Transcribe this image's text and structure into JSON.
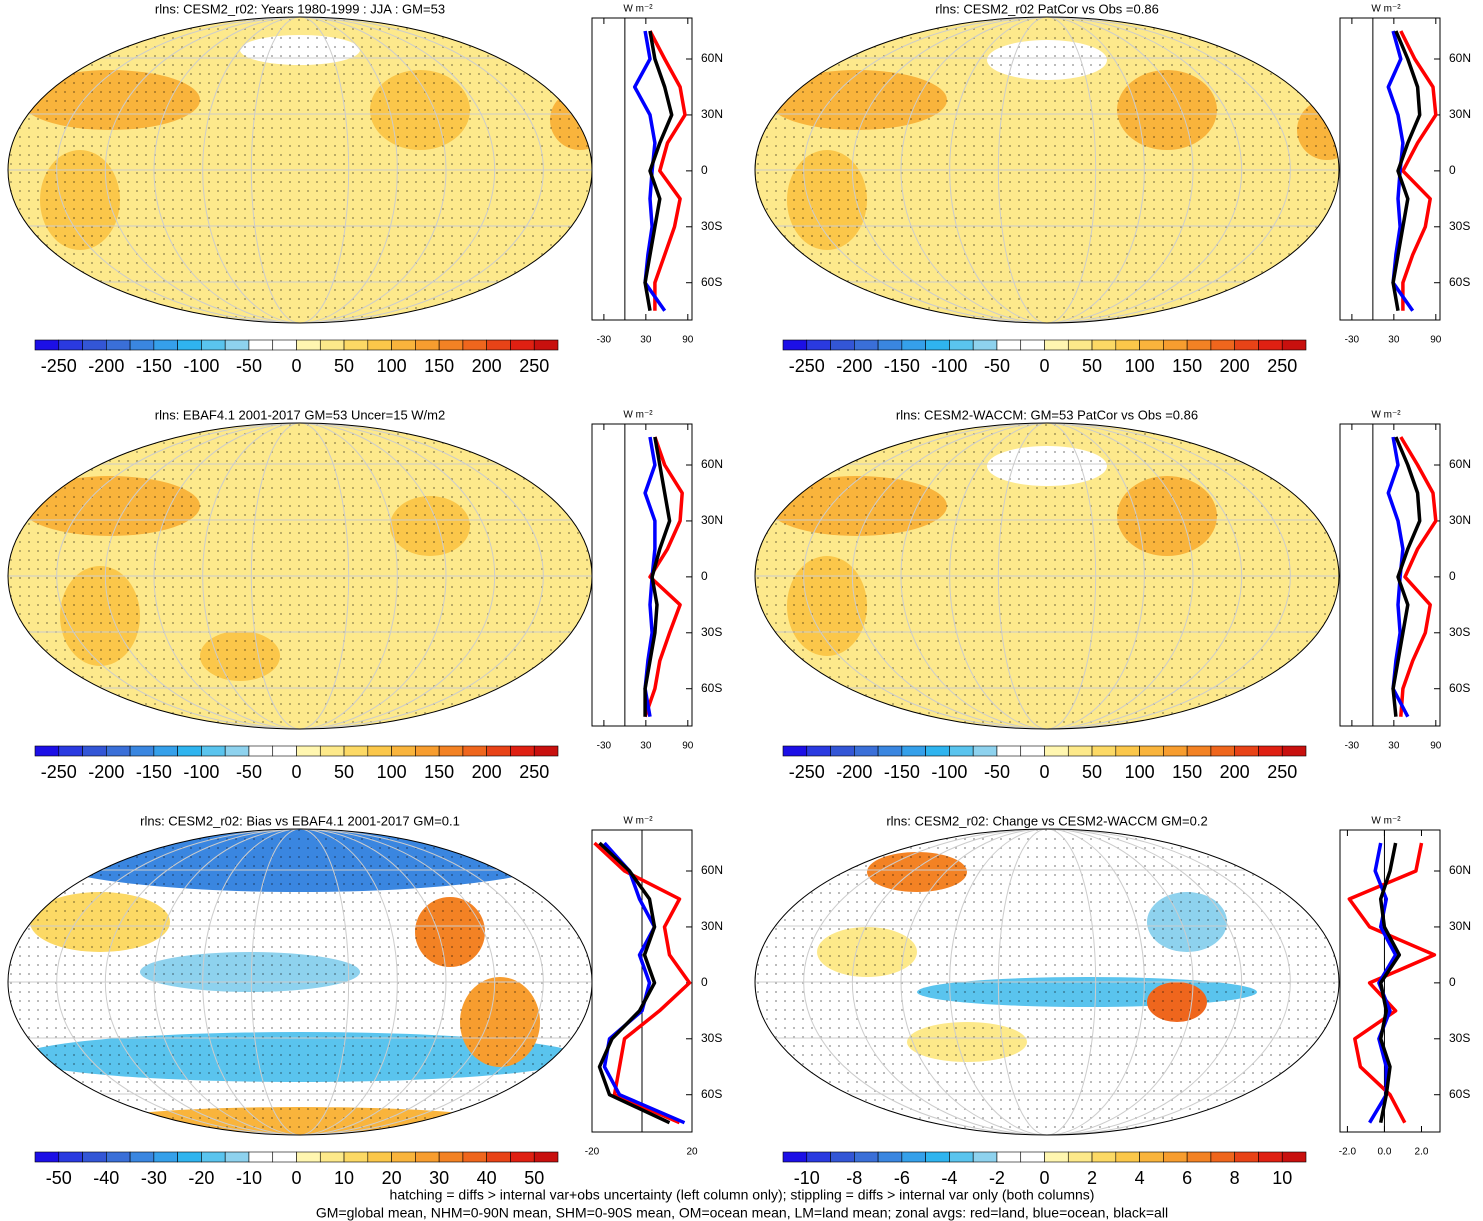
{
  "chart_data": [
    {
      "type": "map",
      "title": "rlns: CESM2_r02: Years 1980-1999 : JJA : GM=53",
      "fill": "#fde98c",
      "colorbar": {
        "lim": [
          -275,
          275
        ],
        "ticks": [
          -250,
          -200,
          -150,
          -100,
          -50,
          0,
          50,
          100,
          150,
          200,
          250
        ],
        "colors": [
          "#1c0fe6",
          "#2a3ae0",
          "#3356d6",
          "#3a6fd8",
          "#3a86e0",
          "#35a0ea",
          "#2fb4ef",
          "#5ac4ee",
          "#8ed2ee",
          "#ffffff",
          "#ffffff",
          "#fff6b0",
          "#fde98a",
          "#fcd965",
          "#fbc74a",
          "#f9b43c",
          "#f79d2f",
          "#f38224",
          "#ef661d",
          "#e84317",
          "#df2012",
          "#c8100e"
        ]
      }
    },
    {
      "type": "line",
      "unit": "W m⁻²",
      "x": [
        75,
        60,
        45,
        30,
        15,
        0,
        -15,
        -30,
        -45,
        -60,
        -75
      ],
      "xlim": [
        -80,
        82
      ],
      "xticks": [
        {
          "value": 60,
          "label": "60N"
        },
        {
          "value": 30,
          "label": "30N"
        },
        0,
        {
          "value": -30,
          "label": "30S"
        },
        {
          "value": -60,
          "label": "60S"
        }
      ],
      "ylim": [
        -47,
        96
      ],
      "yticks": [
        -30,
        30,
        90
      ],
      "series": [
        {
          "name": "land",
          "color": "#ff0000",
          "values": [
            36,
            57,
            79,
            86,
            61,
            50,
            79,
            71,
            57,
            43,
            43
          ]
        },
        {
          "name": "ocean",
          "color": "#0000ff",
          "values": [
            29,
            36,
            14,
            36,
            43,
            39,
            36,
            39,
            33,
            29,
            57
          ]
        },
        {
          "name": "all",
          "color": "#000000",
          "values": [
            36,
            43,
            57,
            67,
            50,
            36,
            50,
            43,
            36,
            29,
            36
          ]
        }
      ]
    },
    {
      "type": "map",
      "title": "rlns: CESM2_r02 PatCor vs Obs =0.86",
      "fill": "#fde98c",
      "colorbar": {
        "lim": [
          -275,
          275
        ],
        "ticks": [
          -250,
          -200,
          -150,
          -100,
          -50,
          0,
          50,
          100,
          150,
          200,
          250
        ],
        "colors": [
          "#1c0fe6",
          "#2a3ae0",
          "#3356d6",
          "#3a6fd8",
          "#3a86e0",
          "#35a0ea",
          "#2fb4ef",
          "#5ac4ee",
          "#8ed2ee",
          "#ffffff",
          "#ffffff",
          "#fff6b0",
          "#fde98a",
          "#fcd965",
          "#fbc74a",
          "#f9b43c",
          "#f79d2f",
          "#f38224",
          "#ef661d",
          "#e84317",
          "#df2012",
          "#c8100e"
        ]
      }
    },
    {
      "type": "line",
      "unit": "W m⁻²",
      "x": [
        75,
        60,
        45,
        30,
        15,
        0,
        -15,
        -30,
        -45,
        -60,
        -75
      ],
      "xlim": [
        -80,
        82
      ],
      "xticks": [
        {
          "value": 60,
          "label": "60N"
        },
        {
          "value": 30,
          "label": "30N"
        },
        0,
        {
          "value": -30,
          "label": "30S"
        },
        {
          "value": -60,
          "label": "60S"
        }
      ],
      "ylim": [
        -47,
        96
      ],
      "yticks": [
        -30,
        30,
        90
      ],
      "series": [
        {
          "name": "land",
          "color": "#ff0000",
          "values": [
            40,
            60,
            86,
            90,
            64,
            43,
            82,
            75,
            57,
            43,
            43
          ]
        },
        {
          "name": "ocean",
          "color": "#0000ff",
          "values": [
            29,
            40,
            22,
            36,
            43,
            39,
            36,
            39,
            33,
            29,
            57
          ]
        },
        {
          "name": "all",
          "color": "#000000",
          "values": [
            33,
            50,
            64,
            67,
            50,
            36,
            50,
            43,
            36,
            29,
            36
          ]
        }
      ]
    },
    {
      "type": "map",
      "title": "rlns: EBAF4.1 2001-2017 GM=53 Uncer=15 W/m2",
      "fill": "#fde98c",
      "colorbar": {
        "lim": [
          -275,
          275
        ],
        "ticks": [
          -250,
          -200,
          -150,
          -100,
          -50,
          0,
          50,
          100,
          150,
          200,
          250
        ],
        "colors": [
          "#1c0fe6",
          "#2a3ae0",
          "#3356d6",
          "#3a6fd8",
          "#3a86e0",
          "#35a0ea",
          "#2fb4ef",
          "#5ac4ee",
          "#8ed2ee",
          "#ffffff",
          "#ffffff",
          "#fff6b0",
          "#fde98a",
          "#fcd965",
          "#fbc74a",
          "#f9b43c",
          "#f79d2f",
          "#f38224",
          "#ef661d",
          "#e84317",
          "#df2012",
          "#c8100e"
        ]
      }
    },
    {
      "type": "line",
      "unit": "W m⁻²",
      "x": [
        75,
        60,
        45,
        30,
        15,
        0,
        -15,
        -30,
        -45,
        -60,
        -75
      ],
      "xlim": [
        -80,
        82
      ],
      "xticks": [
        {
          "value": 60,
          "label": "60N"
        },
        {
          "value": 30,
          "label": "30N"
        },
        0,
        {
          "value": -30,
          "label": "30S"
        },
        {
          "value": -60,
          "label": "60S"
        }
      ],
      "ylim": [
        -47,
        96
      ],
      "yticks": [
        -30,
        30,
        90
      ],
      "series": [
        {
          "name": "land",
          "color": "#ff0000",
          "values": [
            43,
            57,
            82,
            79,
            61,
            36,
            79,
            64,
            50,
            43,
            29
          ]
        },
        {
          "name": "ocean",
          "color": "#0000ff",
          "values": [
            36,
            43,
            29,
            43,
            43,
            39,
            36,
            39,
            33,
            29,
            36
          ]
        },
        {
          "name": "all",
          "color": "#000000",
          "values": [
            43,
            50,
            57,
            64,
            50,
            39,
            46,
            43,
            36,
            29,
            29
          ]
        }
      ]
    },
    {
      "type": "map",
      "title": "rlns: CESM2-WACCM: GM=53 PatCor vs Obs =0.86",
      "fill": "#fde98c",
      "colorbar": {
        "lim": [
          -275,
          275
        ],
        "ticks": [
          -250,
          -200,
          -150,
          -100,
          -50,
          0,
          50,
          100,
          150,
          200,
          250
        ],
        "colors": [
          "#1c0fe6",
          "#2a3ae0",
          "#3356d6",
          "#3a6fd8",
          "#3a86e0",
          "#35a0ea",
          "#2fb4ef",
          "#5ac4ee",
          "#8ed2ee",
          "#ffffff",
          "#ffffff",
          "#fff6b0",
          "#fde98a",
          "#fcd965",
          "#fbc74a",
          "#f9b43c",
          "#f79d2f",
          "#f38224",
          "#ef661d",
          "#e84317",
          "#df2012",
          "#c8100e"
        ]
      }
    },
    {
      "type": "line",
      "unit": "W m⁻²",
      "x": [
        75,
        60,
        45,
        30,
        15,
        0,
        -15,
        -30,
        -45,
        -60,
        -75
      ],
      "xlim": [
        -80,
        82
      ],
      "xticks": [
        {
          "value": 60,
          "label": "60N"
        },
        {
          "value": 30,
          "label": "30N"
        },
        0,
        {
          "value": -30,
          "label": "30S"
        },
        {
          "value": -60,
          "label": "60S"
        }
      ],
      "ylim": [
        -47,
        96
      ],
      "yticks": [
        -30,
        30,
        90
      ],
      "series": [
        {
          "name": "land",
          "color": "#ff0000",
          "values": [
            40,
            64,
            86,
            90,
            64,
            46,
            82,
            75,
            57,
            43,
            40
          ]
        },
        {
          "name": "ocean",
          "color": "#0000ff",
          "values": [
            29,
            36,
            22,
            36,
            43,
            39,
            36,
            39,
            33,
            29,
            50
          ]
        },
        {
          "name": "all",
          "color": "#000000",
          "values": [
            33,
            50,
            64,
            67,
            50,
            36,
            50,
            43,
            36,
            29,
            33
          ]
        }
      ]
    },
    {
      "type": "map",
      "title": "rlns: CESM2_r02: Bias vs EBAF4.1 2001-2017 GM=0.1",
      "fill": "#ffffff",
      "colorbar": {
        "lim": [
          -55,
          55
        ],
        "ticks": [
          -50,
          -40,
          -30,
          -20,
          -10,
          0,
          10,
          20,
          30,
          40,
          50
        ],
        "colors": [
          "#1c0fe6",
          "#2a3ae0",
          "#3356d6",
          "#3a6fd8",
          "#3a86e0",
          "#35a0ea",
          "#2fb4ef",
          "#5ac4ee",
          "#8ed2ee",
          "#ffffff",
          "#ffffff",
          "#fff6b0",
          "#fde98a",
          "#fcd965",
          "#fbc74a",
          "#f9b43c",
          "#f79d2f",
          "#f38224",
          "#ef661d",
          "#e84317",
          "#df2012",
          "#c8100e"
        ]
      }
    },
    {
      "type": "line",
      "unit": "W m⁻²",
      "x": [
        75,
        60,
        45,
        30,
        15,
        0,
        -15,
        -30,
        -45,
        -60,
        -75
      ],
      "xlim": [
        -80,
        82
      ],
      "xticks": [
        {
          "value": 60,
          "label": "60N"
        },
        {
          "value": 30,
          "label": "30N"
        },
        0,
        {
          "value": -30,
          "label": "30S"
        },
        {
          "value": -60,
          "label": "60S"
        }
      ],
      "ylim": [
        -20,
        20
      ],
      "yticks": [
        -20,
        20
      ],
      "series": [
        {
          "name": "land",
          "color": "#ff0000",
          "values": [
            -19,
            -7,
            15,
            9,
            11,
            19,
            7,
            -7,
            -9,
            -11,
            15
          ]
        },
        {
          "name": "ocean",
          "color": "#0000ff",
          "values": [
            -15,
            -5,
            -1,
            5,
            -1,
            3,
            0,
            -13,
            -15,
            -9,
            17
          ]
        },
        {
          "name": "all",
          "color": "#000000",
          "values": [
            -17,
            -5,
            3,
            5,
            1,
            5,
            -1,
            -12,
            -17,
            -13,
            11
          ]
        }
      ]
    },
    {
      "type": "map",
      "title": "rlns: CESM2_r02: Change vs CESM2-WACCM GM=0.2",
      "fill": "#ffffff",
      "colorbar": {
        "lim": [
          -11,
          11
        ],
        "ticks": [
          -10,
          -8,
          -6,
          -4,
          -2,
          0,
          2,
          4,
          6,
          8,
          10
        ],
        "colors": [
          "#1c0fe6",
          "#2a3ae0",
          "#3356d6",
          "#3a6fd8",
          "#3a86e0",
          "#35a0ea",
          "#2fb4ef",
          "#5ac4ee",
          "#8ed2ee",
          "#ffffff",
          "#ffffff",
          "#fff6b0",
          "#fde98a",
          "#fcd965",
          "#fbc74a",
          "#f9b43c",
          "#f79d2f",
          "#f38224",
          "#ef661d",
          "#e84317",
          "#df2012",
          "#c8100e"
        ]
      }
    },
    {
      "type": "line",
      "unit": "W m⁻²",
      "x": [
        75,
        60,
        45,
        30,
        15,
        0,
        -15,
        -30,
        -45,
        -60,
        -75
      ],
      "xlim": [
        -80,
        82
      ],
      "xticks": [
        {
          "value": 60,
          "label": "60N"
        },
        {
          "value": 30,
          "label": "30N"
        },
        0,
        {
          "value": -30,
          "label": "30S"
        },
        {
          "value": -60,
          "label": "60S"
        }
      ],
      "ylim": [
        -2.4,
        3.0
      ],
      "yticks": [
        {
          "value": -2,
          "label": "-2.0"
        },
        {
          "value": 0,
          "label": "0.0"
        },
        {
          "value": 2,
          "label": "2.0"
        }
      ],
      "series": [
        {
          "name": "land",
          "color": "#ff0000",
          "values": [
            2.0,
            1.7,
            -1.9,
            -0.8,
            2.7,
            -0.8,
            0.6,
            -1.6,
            -1.3,
            0.3,
            1.1
          ]
        },
        {
          "name": "ocean",
          "color": "#0000ff",
          "values": [
            -0.2,
            -0.5,
            0.1,
            -0.2,
            0.6,
            -0.3,
            0.3,
            -0.3,
            0.1,
            0.1,
            -0.8
          ]
        },
        {
          "name": "all",
          "color": "#000000",
          "values": [
            0.6,
            0.3,
            -0.2,
            0.0,
            0.8,
            -0.2,
            0.1,
            -0.2,
            0.3,
            0.1,
            -0.2
          ]
        }
      ]
    }
  ],
  "notes": [
    "hatching = diffs > internal var+obs uncertainty (left column only); stippling = diffs > internal var only (both columns)",
    "GM=global mean, NHM=0-90N mean, SHM=0-90S mean, OM=ocean mean, LM=land mean; zonal avgs: red=land, blue=ocean, black=all"
  ]
}
